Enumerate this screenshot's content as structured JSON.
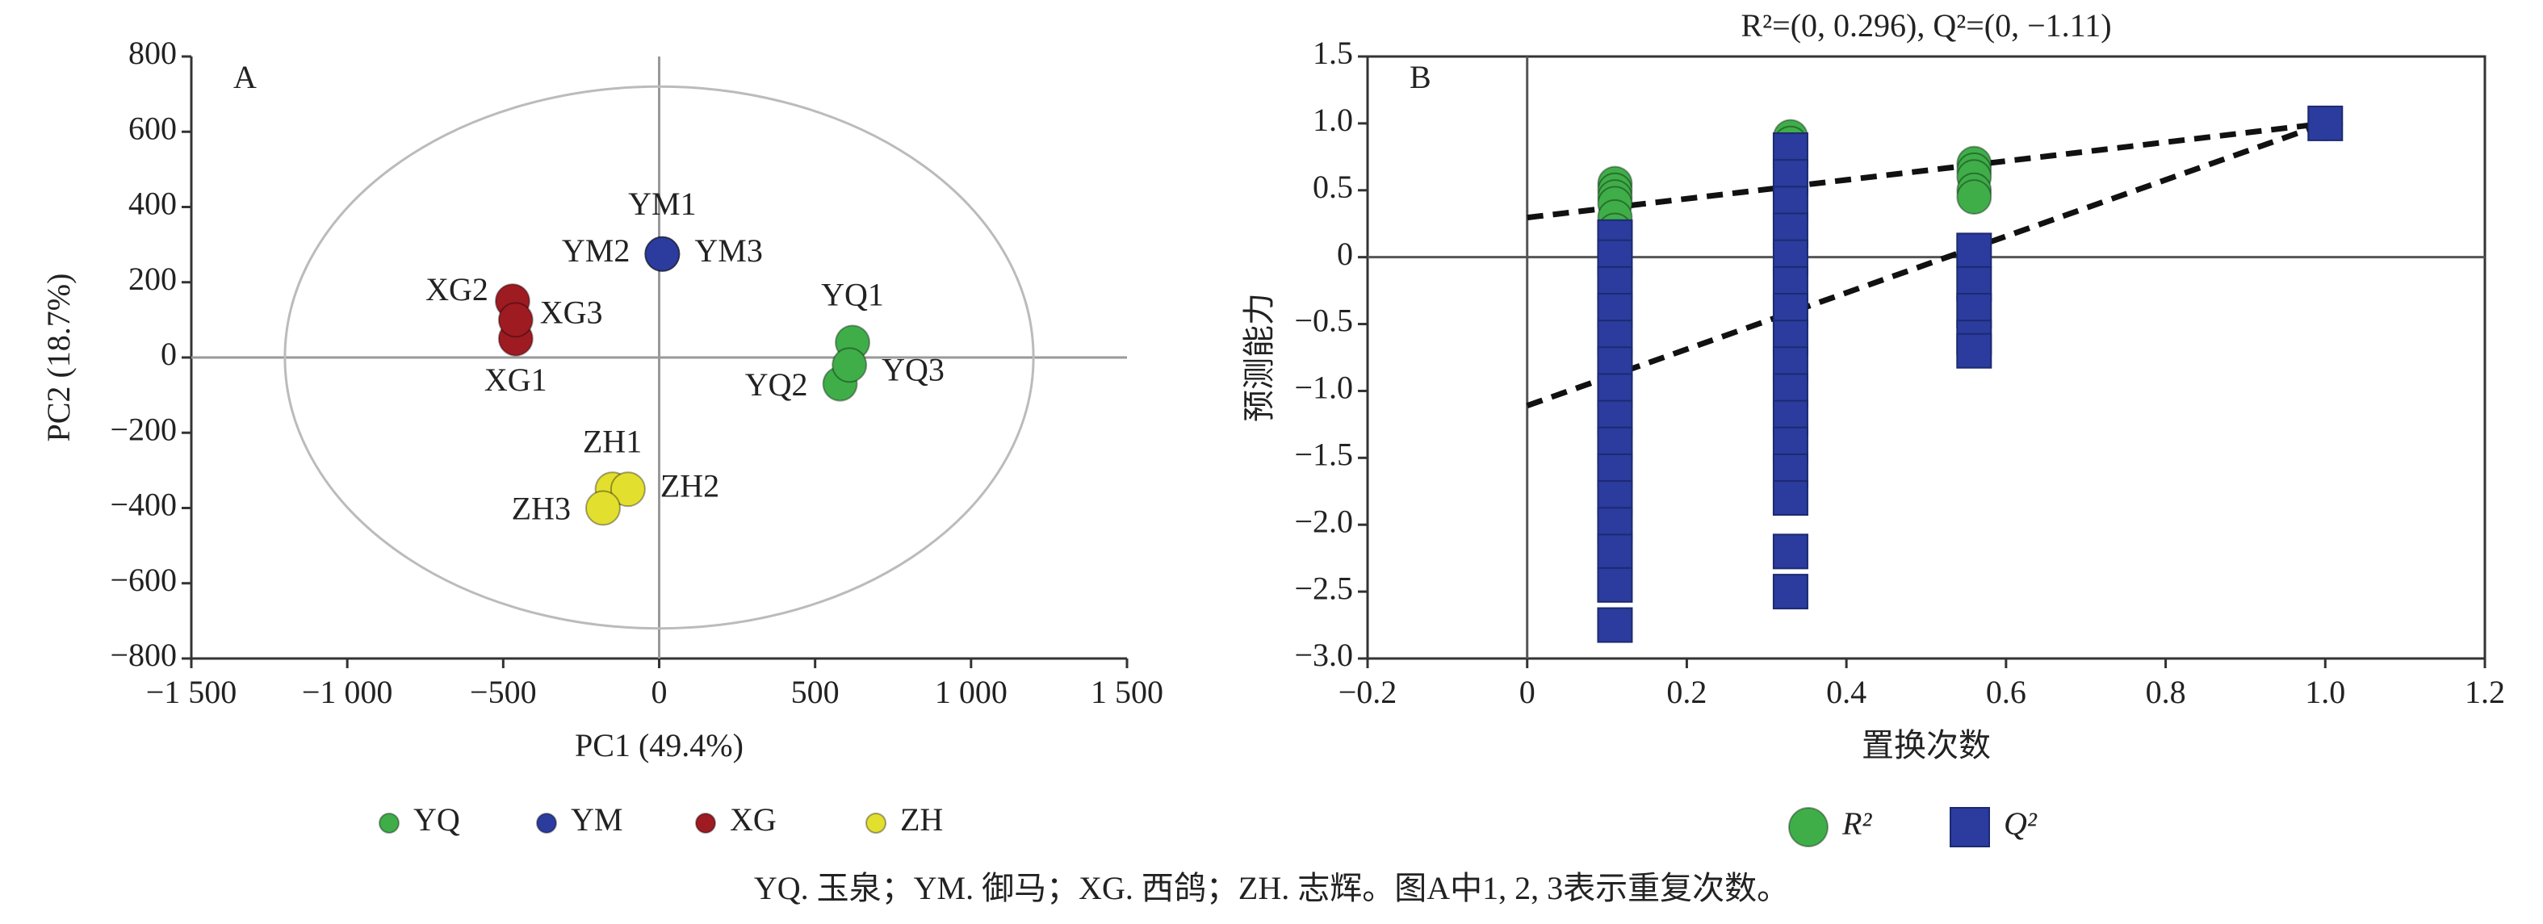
{
  "chart_data": [
    {
      "type": "scatter",
      "panel_label": "A",
      "xlabel": "PC1 (49.4%)",
      "ylabel": "PC2 (18.7%)",
      "xlim": [
        -1500,
        1500
      ],
      "xticks": [
        {
          "value": -1500,
          "label": "−1 500"
        },
        {
          "value": -1000,
          "label": "−1 000"
        },
        {
          "value": -500,
          "label": "−500"
        },
        0,
        500,
        {
          "value": 1000,
          "label": "1 000"
        },
        {
          "value": 1500,
          "label": "1 500"
        }
      ],
      "ylim": [
        -800,
        800
      ],
      "yticks": [
        {
          "value": -800,
          "label": "−800"
        },
        {
          "value": -600,
          "label": "−600"
        },
        {
          "value": -400,
          "label": "−400"
        },
        {
          "value": -200,
          "label": "−200"
        },
        0,
        200,
        400,
        600,
        800
      ],
      "series": [
        {
          "name": "YQ",
          "color": "#3fae49",
          "marker": "circle",
          "x": [
            620,
            580,
            610
          ],
          "values": [
            40,
            -70,
            -20
          ],
          "point_labels": [
            "YQ1",
            "YQ2",
            "YQ3"
          ]
        },
        {
          "name": "YM",
          "color": "#2b3c9e",
          "marker": "circle",
          "x": [
            10,
            10,
            10
          ],
          "values": [
            275,
            275,
            275
          ],
          "point_labels": [
            "YM1",
            "YM2",
            "YM3"
          ]
        },
        {
          "name": "XG",
          "color": "#9e1b22",
          "marker": "circle",
          "x": [
            -460,
            -470,
            -460
          ],
          "values": [
            50,
            150,
            100
          ],
          "point_labels": [
            "XG1",
            "XG2",
            "XG3"
          ]
        },
        {
          "name": "ZH",
          "color": "#e3df2e",
          "marker": "circle",
          "x": [
            -150,
            -100,
            -180
          ],
          "values": [
            -350,
            -350,
            -400
          ],
          "point_labels": [
            "ZH1",
            "ZH2",
            "ZH3"
          ]
        }
      ]
    },
    {
      "type": "scatter",
      "panel_label": "B",
      "title": "R²=(0, 0.296), Q²=(0, −1.11)",
      "xlabel": "置换次数",
      "ylabel": "预测能力",
      "xlim": [
        -0.2,
        1.2
      ],
      "xticks": [
        {
          "value": -0.2,
          "label": "−0.2"
        },
        0,
        0.2,
        0.4,
        0.6,
        0.8,
        {
          "value": 1,
          "label": "1.0"
        },
        1.2
      ],
      "ylim": [
        -3,
        1.5
      ],
      "yticks": [
        {
          "value": -3,
          "label": "−3.0"
        },
        {
          "value": -2.5,
          "label": "−2.5"
        },
        {
          "value": -2,
          "label": "−2.0"
        },
        {
          "value": -1.5,
          "label": "−1.5"
        },
        {
          "value": -1,
          "label": "−1.0"
        },
        {
          "value": -0.5,
          "label": "−0.5"
        },
        0,
        0.5,
        {
          "value": 1,
          "label": "1.0"
        },
        1.5
      ],
      "series": [
        {
          "name": "R²",
          "color": "#3fae49",
          "marker": "circle",
          "x": [
            0.11,
            0.11,
            0.11,
            0.11,
            0.11,
            0.11,
            0.33,
            0.33,
            0.33,
            0.33,
            0.33,
            0.33,
            0.33,
            0.33,
            0.56,
            0.56,
            0.56,
            0.56,
            0.56,
            1
          ],
          "values": [
            0.55,
            0.5,
            0.45,
            0.4,
            0.3,
            0.2,
            0.9,
            0.85,
            0.8,
            0.7,
            0.6,
            0.5,
            0.4,
            0.2,
            0.7,
            0.65,
            0.6,
            0.5,
            0.45,
            1
          ]
        },
        {
          "name": "Q²",
          "color": "#2b3c9e",
          "marker": "square",
          "x": [
            0.11,
            0.11,
            0.11,
            0.11,
            0.11,
            0.11,
            0.11,
            0.11,
            0.11,
            0.11,
            0.11,
            0.11,
            0.11,
            0.11,
            0.11,
            0.33,
            0.33,
            0.33,
            0.33,
            0.33,
            0.33,
            0.33,
            0.33,
            0.33,
            0.33,
            0.33,
            0.33,
            0.33,
            0.33,
            0.33,
            0.33,
            0.56,
            0.56,
            0.56,
            0.56,
            0.56,
            1
          ],
          "values": [
            0.15,
            0,
            -0.2,
            -0.4,
            -0.6,
            -0.8,
            -1,
            -1.2,
            -1.4,
            -1.6,
            -1.8,
            -2,
            -2.2,
            -2.45,
            -2.75,
            0.8,
            0.6,
            0.4,
            0.2,
            0,
            -0.2,
            -0.4,
            -0.6,
            -0.8,
            -1,
            -1.2,
            -1.4,
            -1.6,
            -1.8,
            -2.2,
            -2.5,
            0.05,
            -0.2,
            -0.4,
            -0.6,
            -0.7,
            1
          ]
        }
      ],
      "fit_lines": [
        {
          "x": [
            0,
            1
          ],
          "values": [
            0.296,
            1
          ]
        },
        {
          "x": [
            0,
            1
          ],
          "values": [
            -1.11,
            1
          ]
        }
      ]
    }
  ],
  "caption": "YQ. 玉泉；YM. 御马；XG. 西鸽；ZH. 志辉。图A中1, 2, 3表示重复次数。"
}
